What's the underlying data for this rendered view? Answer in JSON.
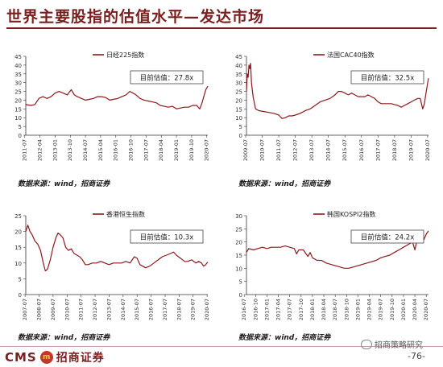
{
  "page": {
    "title": "世界主要股指的估值水平—发达市场",
    "source_note": "数据来源：wind，招商证券",
    "footer": {
      "logo_en": "CMS",
      "logo_badge": "m",
      "logo_cn": "招商证券",
      "wechat": "招商策略研究",
      "page_number": "-76-"
    }
  },
  "chart_data": [
    {
      "type": "line",
      "title": "",
      "xlabel": "",
      "ylabel": "",
      "series": [
        {
          "name": "日经225指数",
          "color": "#8b1a1a"
        }
      ],
      "ylim": [
        0,
        45
      ],
      "yticks": [
        0,
        5,
        10,
        15,
        20,
        25,
        30,
        35,
        40,
        45
      ],
      "xlim": [
        2011.55,
        2020.55
      ],
      "xticks": [
        "2011-07",
        "2012-04",
        "2013-01",
        "2013-10",
        "2014-07",
        "2015-04",
        "2016-01",
        "2016-10",
        "2017-07",
        "2018-04",
        "2019-01",
        "2019-10",
        "2020-07"
      ],
      "annotation": "目前估值：27.8x",
      "points": [
        [
          2011.55,
          17.5
        ],
        [
          2011.8,
          17
        ],
        [
          2012.0,
          17.5
        ],
        [
          2012.2,
          21
        ],
        [
          2012.4,
          22
        ],
        [
          2012.6,
          21
        ],
        [
          2012.8,
          22
        ],
        [
          2013.0,
          24
        ],
        [
          2013.2,
          25
        ],
        [
          2013.4,
          24
        ],
        [
          2013.6,
          23
        ],
        [
          2013.8,
          26
        ],
        [
          2013.95,
          23
        ],
        [
          2014.1,
          22
        ],
        [
          2014.3,
          21
        ],
        [
          2014.5,
          20
        ],
        [
          2014.7,
          20.5
        ],
        [
          2014.9,
          21
        ],
        [
          2015.1,
          22
        ],
        [
          2015.3,
          22
        ],
        [
          2015.5,
          21.5
        ],
        [
          2015.7,
          20
        ],
        [
          2015.9,
          20.5
        ],
        [
          2016.1,
          21
        ],
        [
          2016.3,
          22
        ],
        [
          2016.5,
          23
        ],
        [
          2016.7,
          25
        ],
        [
          2016.85,
          24
        ],
        [
          2017.0,
          23
        ],
        [
          2017.2,
          21
        ],
        [
          2017.4,
          20
        ],
        [
          2017.6,
          19.5
        ],
        [
          2017.8,
          19
        ],
        [
          2018.0,
          18.5
        ],
        [
          2018.2,
          17
        ],
        [
          2018.4,
          16.5
        ],
        [
          2018.6,
          16
        ],
        [
          2018.8,
          16.5
        ],
        [
          2019.0,
          15
        ],
        [
          2019.2,
          15.5
        ],
        [
          2019.4,
          16
        ],
        [
          2019.6,
          16
        ],
        [
          2019.8,
          17
        ],
        [
          2020.0,
          17
        ],
        [
          2020.15,
          15
        ],
        [
          2020.25,
          18
        ],
        [
          2020.35,
          22
        ],
        [
          2020.45,
          26
        ],
        [
          2020.55,
          28
        ]
      ]
    },
    {
      "type": "line",
      "title": "",
      "xlabel": "",
      "ylabel": "",
      "series": [
        {
          "name": "法国CAC40指数",
          "color": "#8b1a1a"
        }
      ],
      "ylim": [
        0,
        45
      ],
      "yticks": [
        0,
        5,
        10,
        15,
        20,
        25,
        30,
        35,
        40,
        45
      ],
      "xlim": [
        2009.55,
        2020.55
      ],
      "xticks": [
        "2009-07",
        "2010-07",
        "2011-07",
        "2012-07",
        "2013-07",
        "2014-07",
        "2015-07",
        "2016-07",
        "2017-07",
        "2018-07",
        "2019-07",
        "2020-07"
      ],
      "annotation": "目前估值：32.5x",
      "points": [
        [
          2009.55,
          25
        ],
        [
          2009.6,
          35
        ],
        [
          2009.65,
          33
        ],
        [
          2009.7,
          40
        ],
        [
          2009.75,
          38
        ],
        [
          2009.8,
          41
        ],
        [
          2009.85,
          30
        ],
        [
          2009.95,
          22
        ],
        [
          2010.1,
          15
        ],
        [
          2010.3,
          14
        ],
        [
          2010.6,
          13.5
        ],
        [
          2010.9,
          13
        ],
        [
          2011.2,
          12.5
        ],
        [
          2011.5,
          11.5
        ],
        [
          2011.7,
          9.5
        ],
        [
          2011.9,
          10
        ],
        [
          2012.1,
          11
        ],
        [
          2012.3,
          11
        ],
        [
          2012.5,
          11.5
        ],
        [
          2012.8,
          12.5
        ],
        [
          2013.1,
          14
        ],
        [
          2013.4,
          15
        ],
        [
          2013.7,
          17
        ],
        [
          2014.0,
          19
        ],
        [
          2014.3,
          20
        ],
        [
          2014.6,
          21
        ],
        [
          2014.9,
          23
        ],
        [
          2015.1,
          25
        ],
        [
          2015.3,
          25
        ],
        [
          2015.5,
          24
        ],
        [
          2015.7,
          23
        ],
        [
          2015.9,
          24
        ],
        [
          2016.1,
          23
        ],
        [
          2016.3,
          22
        ],
        [
          2016.5,
          22
        ],
        [
          2016.7,
          22
        ],
        [
          2016.9,
          23
        ],
        [
          2017.1,
          22
        ],
        [
          2017.3,
          21
        ],
        [
          2017.5,
          19
        ],
        [
          2017.7,
          18
        ],
        [
          2017.9,
          18
        ],
        [
          2018.1,
          18
        ],
        [
          2018.3,
          18
        ],
        [
          2018.5,
          17.5
        ],
        [
          2018.7,
          17
        ],
        [
          2018.9,
          16
        ],
        [
          2019.1,
          17
        ],
        [
          2019.3,
          18
        ],
        [
          2019.5,
          19
        ],
        [
          2019.7,
          20
        ],
        [
          2019.9,
          21
        ],
        [
          2020.05,
          21
        ],
        [
          2020.2,
          15
        ],
        [
          2020.3,
          18
        ],
        [
          2020.4,
          24
        ],
        [
          2020.5,
          30
        ],
        [
          2020.55,
          32.5
        ]
      ]
    },
    {
      "type": "line",
      "title": "",
      "xlabel": "",
      "ylabel": "",
      "series": [
        {
          "name": "香港恒生指数",
          "color": "#8b1a1a"
        }
      ],
      "ylim": [
        0,
        25
      ],
      "yticks": [
        0,
        5,
        10,
        15,
        20,
        25
      ],
      "xlim": [
        2007.55,
        2020.55
      ],
      "xticks": [
        "2007-07",
        "2008-07",
        "2009-07",
        "2010-07",
        "2011-07",
        "2012-07",
        "2013-07",
        "2014-07",
        "2015-07",
        "2016-07",
        "2017-07",
        "2018-07",
        "2019-07",
        "2020-07"
      ],
      "annotation": "目前估值：10.3x",
      "points": [
        [
          2007.55,
          20
        ],
        [
          2007.7,
          22
        ],
        [
          2007.85,
          20
        ],
        [
          2008.0,
          19
        ],
        [
          2008.2,
          17
        ],
        [
          2008.4,
          16
        ],
        [
          2008.6,
          14
        ],
        [
          2008.8,
          10
        ],
        [
          2008.95,
          7.5
        ],
        [
          2009.1,
          8
        ],
        [
          2009.3,
          11
        ],
        [
          2009.5,
          15
        ],
        [
          2009.7,
          18
        ],
        [
          2009.85,
          19.5
        ],
        [
          2010.0,
          19
        ],
        [
          2010.2,
          18
        ],
        [
          2010.4,
          15
        ],
        [
          2010.6,
          14
        ],
        [
          2010.8,
          14.5
        ],
        [
          2011.0,
          13
        ],
        [
          2011.2,
          12.5
        ],
        [
          2011.4,
          12
        ],
        [
          2011.6,
          11
        ],
        [
          2011.8,
          9.5
        ],
        [
          2012.0,
          9.5
        ],
        [
          2012.3,
          10
        ],
        [
          2012.6,
          10
        ],
        [
          2012.9,
          10.5
        ],
        [
          2013.2,
          10
        ],
        [
          2013.5,
          9.5
        ],
        [
          2013.8,
          10
        ],
        [
          2014.1,
          10
        ],
        [
          2014.4,
          10
        ],
        [
          2014.7,
          10.5
        ],
        [
          2015.0,
          10
        ],
        [
          2015.3,
          12
        ],
        [
          2015.5,
          11.5
        ],
        [
          2015.7,
          9.5
        ],
        [
          2015.9,
          9
        ],
        [
          2016.1,
          8.5
        ],
        [
          2016.4,
          9
        ],
        [
          2016.7,
          10
        ],
        [
          2017.0,
          11
        ],
        [
          2017.3,
          12
        ],
        [
          2017.6,
          12.5
        ],
        [
          2017.9,
          13
        ],
        [
          2018.1,
          13.5
        ],
        [
          2018.3,
          12.5
        ],
        [
          2018.6,
          11.5
        ],
        [
          2018.9,
          10.5
        ],
        [
          2019.1,
          10.5
        ],
        [
          2019.4,
          11
        ],
        [
          2019.7,
          10
        ],
        [
          2019.9,
          10.5
        ],
        [
          2020.1,
          10
        ],
        [
          2020.25,
          9
        ],
        [
          2020.4,
          9.5
        ],
        [
          2020.55,
          10.3
        ]
      ]
    },
    {
      "type": "line",
      "title": "",
      "xlabel": "",
      "ylabel": "",
      "series": [
        {
          "name": "韩国KOSPI2指数",
          "color": "#8b1a1a"
        }
      ],
      "ylim": [
        0,
        30
      ],
      "yticks": [
        0,
        5,
        10,
        15,
        20,
        25,
        30
      ],
      "xlim": [
        2016.55,
        2020.55
      ],
      "xticks": [
        "2016-07",
        "2016-10",
        "2017-01",
        "2017-04",
        "2017-07",
        "2017-10",
        "2018-01",
        "2018-04",
        "2018-07",
        "2018-10",
        "2019-01",
        "2019-04",
        "2019-07",
        "2019-10",
        "2020-01",
        "2020-04",
        "2020-07"
      ],
      "annotation": "目前估值：24.2x",
      "points": [
        [
          2016.55,
          16
        ],
        [
          2016.6,
          17.5
        ],
        [
          2016.7,
          17
        ],
        [
          2016.8,
          17.5
        ],
        [
          2016.9,
          18
        ],
        [
          2017.0,
          17.5
        ],
        [
          2017.1,
          18
        ],
        [
          2017.2,
          18
        ],
        [
          2017.3,
          18
        ],
        [
          2017.4,
          18.5
        ],
        [
          2017.5,
          18
        ],
        [
          2017.6,
          17.5
        ],
        [
          2017.65,
          15.5
        ],
        [
          2017.7,
          17
        ],
        [
          2017.8,
          17
        ],
        [
          2017.9,
          14.5
        ],
        [
          2017.95,
          16
        ],
        [
          2018.0,
          14
        ],
        [
          2018.1,
          13
        ],
        [
          2018.2,
          13
        ],
        [
          2018.3,
          12
        ],
        [
          2018.4,
          11.5
        ],
        [
          2018.5,
          11
        ],
        [
          2018.6,
          10.5
        ],
        [
          2018.7,
          10
        ],
        [
          2018.8,
          10
        ],
        [
          2018.9,
          10.5
        ],
        [
          2019.0,
          11
        ],
        [
          2019.1,
          11.5
        ],
        [
          2019.2,
          12
        ],
        [
          2019.3,
          12.5
        ],
        [
          2019.4,
          13
        ],
        [
          2019.5,
          14
        ],
        [
          2019.6,
          14.5
        ],
        [
          2019.7,
          15
        ],
        [
          2019.8,
          16
        ],
        [
          2019.9,
          17
        ],
        [
          2020.0,
          18
        ],
        [
          2020.1,
          19
        ],
        [
          2020.2,
          20
        ],
        [
          2020.25,
          17
        ],
        [
          2020.3,
          21
        ],
        [
          2020.4,
          22
        ],
        [
          2020.45,
          21
        ],
        [
          2020.5,
          23
        ],
        [
          2020.55,
          24.2
        ]
      ]
    }
  ]
}
